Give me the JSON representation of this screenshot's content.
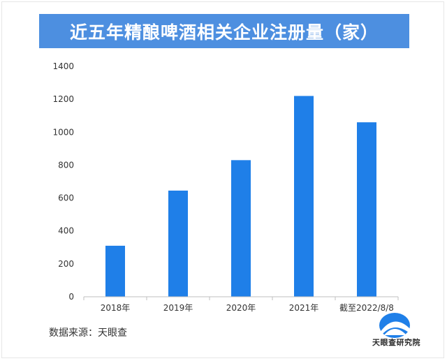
{
  "chart_data": {
    "type": "bar",
    "title": "近五年精酿啤酒相关企业注册量（家）",
    "categories": [
      "2018年",
      "2019年",
      "2020年",
      "2021年",
      "截至2022/8/8"
    ],
    "values": [
      310,
      645,
      830,
      1220,
      1060
    ],
    "ylim": [
      0,
      1400
    ],
    "yticks": [
      "0",
      "200",
      "400",
      "600",
      "800",
      "1000",
      "1200",
      "1400"
    ],
    "xlabel": "",
    "ylabel": "",
    "grid": false,
    "legend": "none",
    "bar_color": "#1f7fe8",
    "title_bg_color": "#4d8fe0"
  },
  "footer": {
    "source": "数据来源：天眼查",
    "logo_text": "天眼查研究院"
  }
}
